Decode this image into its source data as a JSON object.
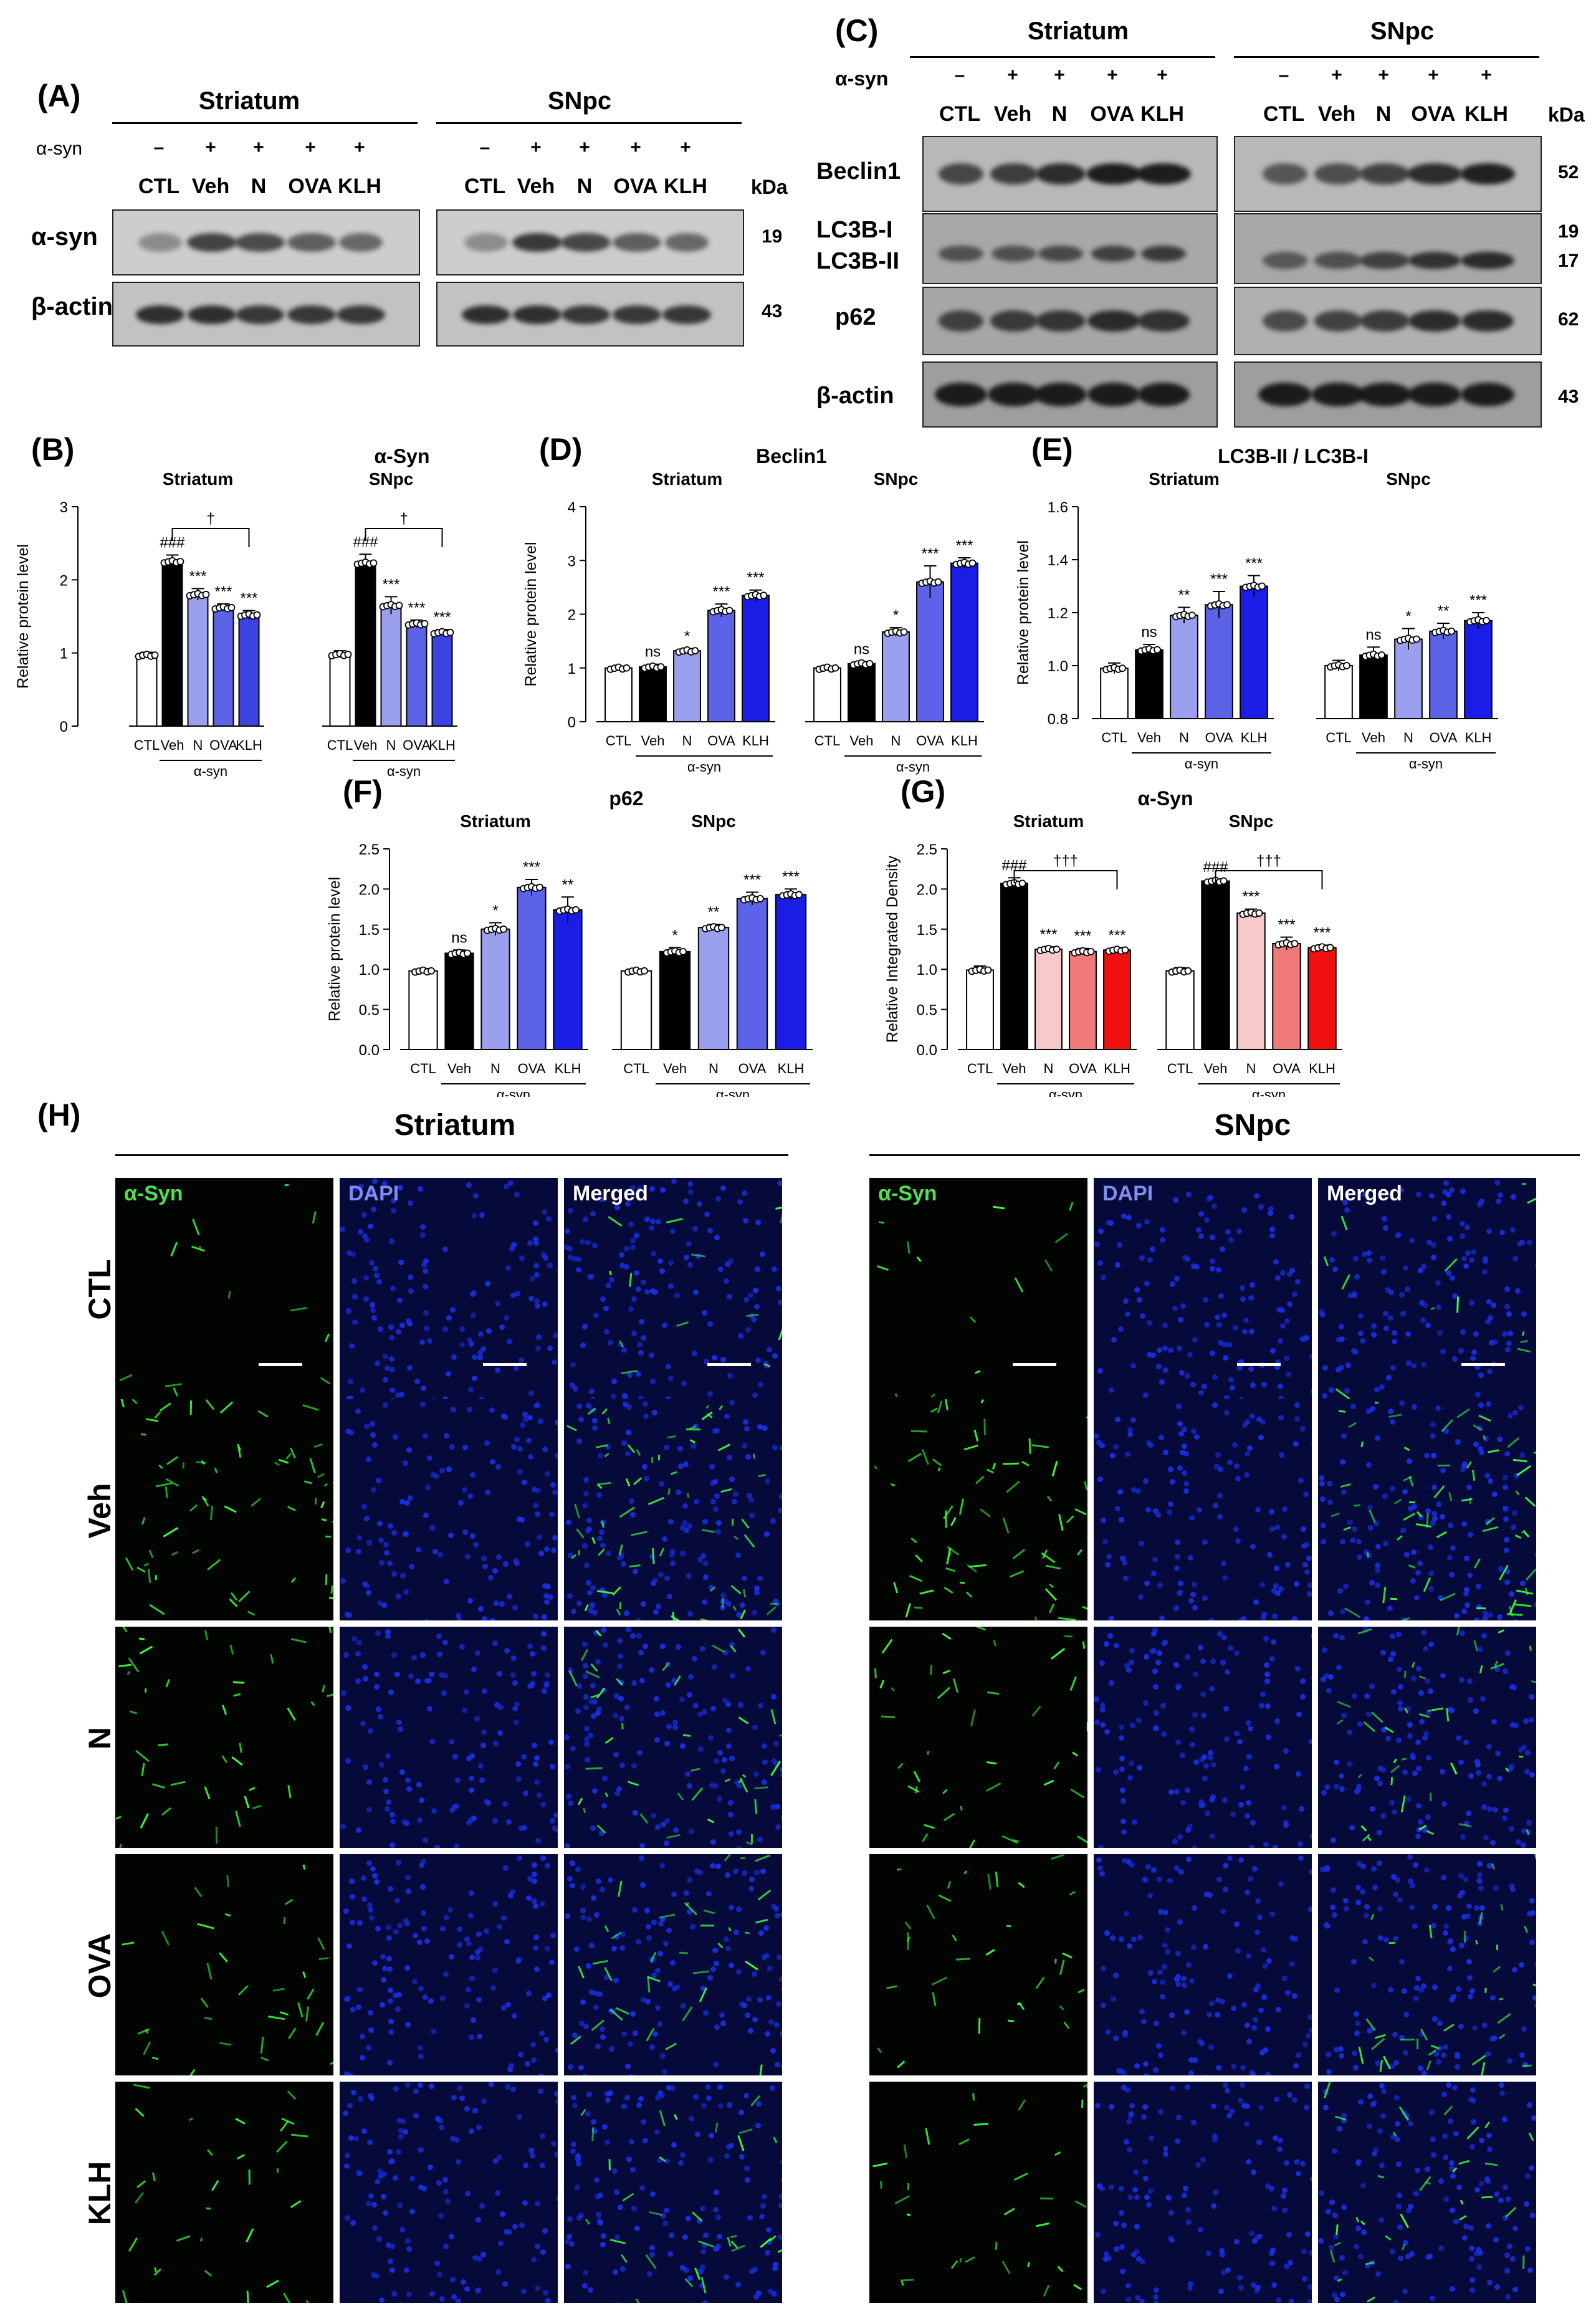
{
  "panels": {
    "A": {
      "label": "(A)",
      "regions": [
        "Striatum",
        "SNpc"
      ],
      "asyn_label": "α-syn",
      "asyn_signs": [
        "–",
        "+",
        "+",
        "+",
        "+"
      ],
      "groups": [
        "CTL",
        "Veh",
        "N",
        "OVA",
        "KLH"
      ],
      "kda_label": "kDa",
      "rows": [
        {
          "name": "α-syn",
          "kda": "19"
        },
        {
          "name": "β-actin",
          "kda": "43"
        }
      ]
    },
    "C": {
      "label": "(C)",
      "regions": [
        "Striatum",
        "SNpc"
      ],
      "asyn_label": "α-syn",
      "asyn_signs": [
        "–",
        "+",
        "+",
        "+",
        "+"
      ],
      "groups": [
        "CTL",
        "Veh",
        "N",
        "OVA",
        "KLH"
      ],
      "kda_label": "kDa",
      "rows": [
        {
          "name": "Beclin1",
          "kda": "52"
        },
        {
          "name": "LC3B-I",
          "kda": "19"
        },
        {
          "name": "LC3B-II",
          "kda": "17"
        },
        {
          "name": "p62",
          "kda": "62"
        },
        {
          "name": "β-actin",
          "kda": "43"
        }
      ]
    },
    "H": {
      "label": "(H)",
      "regions": [
        "Striatum",
        "SNpc"
      ],
      "channels": [
        "α-Syn",
        "DAPI",
        "Merged"
      ],
      "rows": [
        "CTL",
        "Veh",
        "N",
        "OVA",
        "KLH"
      ]
    }
  },
  "chart_data": [
    {
      "panel_label": "(B)",
      "type": "bar",
      "title": "α-Syn",
      "ylabel": "Relative protein level",
      "ylim": [
        0,
        3
      ],
      "yticks": [
        0,
        1,
        2,
        3
      ],
      "groups": [
        "Striatum",
        "SNpc"
      ],
      "categories": [
        "CTL",
        "Veh",
        "N",
        "OVA",
        "KLH"
      ],
      "group_sublabel": "α-syn",
      "colors": [
        "#ffffff",
        "#000000",
        "#9aa0ee",
        "#5c63e6",
        "#3b43e0"
      ],
      "series": [
        {
          "name": "Striatum",
          "values": [
            0.97,
            2.25,
            1.8,
            1.62,
            1.52
          ],
          "errors": [
            0.04,
            0.09,
            0.08,
            0.05,
            0.06
          ],
          "annotations": [
            "",
            "###",
            "***",
            "***",
            "***"
          ]
        },
        {
          "name": "SNpc",
          "values": [
            0.98,
            2.23,
            1.65,
            1.4,
            1.28
          ],
          "errors": [
            0.05,
            0.12,
            0.12,
            0.05,
            0.04
          ],
          "annotations": [
            "",
            "###",
            "***",
            "***",
            "***"
          ]
        }
      ],
      "brackets": [
        "†",
        "†"
      ]
    },
    {
      "panel_label": "(D)",
      "type": "bar",
      "title": "Beclin1",
      "ylabel": "Relative protein level",
      "ylim": [
        0,
        4
      ],
      "yticks": [
        0,
        1,
        2,
        3,
        4
      ],
      "groups": [
        "Striatum",
        "SNpc"
      ],
      "categories": [
        "CTL",
        "Veh",
        "N",
        "OVA",
        "KLH"
      ],
      "group_sublabel": "α-syn",
      "colors": [
        "#ffffff",
        "#000000",
        "#9aa0ee",
        "#5c63e6",
        "#1a1de6"
      ],
      "series": [
        {
          "name": "Striatum",
          "values": [
            1.0,
            1.02,
            1.32,
            2.07,
            2.35
          ],
          "errors": [
            0.03,
            0.05,
            0.04,
            0.12,
            0.1
          ],
          "annotations": [
            "",
            "ns",
            "*",
            "***",
            "***"
          ]
        },
        {
          "name": "SNpc",
          "values": [
            1.0,
            1.08,
            1.67,
            2.6,
            2.95
          ],
          "errors": [
            0.03,
            0.04,
            0.08,
            0.3,
            0.1
          ],
          "annotations": [
            "",
            "ns",
            "*",
            "***",
            "***"
          ]
        }
      ]
    },
    {
      "panel_label": "(E)",
      "type": "bar",
      "title": "LC3B-II / LC3B-I",
      "ylabel": "Relative protein level",
      "ylim": [
        0.8,
        1.6
      ],
      "yticks": [
        0.8,
        1.0,
        1.2,
        1.4,
        1.6
      ],
      "groups": [
        "Striatum",
        "SNpc"
      ],
      "categories": [
        "CTL",
        "Veh",
        "N",
        "OVA",
        "KLH"
      ],
      "group_sublabel": "α-syn",
      "colors": [
        "#ffffff",
        "#000000",
        "#9aa0ee",
        "#5c63e6",
        "#1a1de6"
      ],
      "series": [
        {
          "name": "Striatum",
          "values": [
            0.99,
            1.06,
            1.19,
            1.23,
            1.3
          ],
          "errors": [
            0.02,
            0.02,
            0.03,
            0.05,
            0.04
          ],
          "annotations": [
            "",
            "ns",
            "**",
            "***",
            "***"
          ]
        },
        {
          "name": "SNpc",
          "values": [
            1.0,
            1.04,
            1.1,
            1.13,
            1.17
          ],
          "errors": [
            0.02,
            0.03,
            0.04,
            0.03,
            0.03
          ],
          "annotations": [
            "",
            "ns",
            "*",
            "**",
            "***"
          ]
        }
      ]
    },
    {
      "panel_label": "(F)",
      "type": "bar",
      "title": "p62",
      "ylabel": "Relative protein level",
      "ylim": [
        0,
        2.5
      ],
      "yticks": [
        0,
        0.5,
        1.0,
        1.5,
        2.0,
        2.5
      ],
      "groups": [
        "Striatum",
        "SNpc"
      ],
      "categories": [
        "CTL",
        "Veh",
        "N",
        "OVA",
        "KLH"
      ],
      "group_sublabel": "α-syn",
      "colors": [
        "#ffffff",
        "#000000",
        "#9aa0ee",
        "#5c63e6",
        "#1a1de6"
      ],
      "series": [
        {
          "name": "Striatum",
          "values": [
            0.98,
            1.2,
            1.5,
            2.02,
            1.74
          ],
          "errors": [
            0.03,
            0.04,
            0.08,
            0.1,
            0.16
          ],
          "annotations": [
            "",
            "ns",
            "*",
            "***",
            "**"
          ]
        },
        {
          "name": "SNpc",
          "values": [
            0.98,
            1.22,
            1.52,
            1.88,
            1.93
          ],
          "errors": [
            0.02,
            0.05,
            0.04,
            0.08,
            0.07
          ],
          "annotations": [
            "",
            "*",
            "**",
            "***",
            "***"
          ]
        }
      ]
    },
    {
      "panel_label": "(G)",
      "type": "bar",
      "title": "α-Syn",
      "ylabel": "Relative Integrated Density",
      "ylim": [
        0,
        2.5
      ],
      "yticks": [
        0,
        0.5,
        1.0,
        1.5,
        2.0,
        2.5
      ],
      "groups": [
        "Striatum",
        "SNpc"
      ],
      "categories": [
        "CTL",
        "Veh",
        "N",
        "OVA",
        "KLH"
      ],
      "group_sublabel": "α-syn",
      "colors": [
        "#ffffff",
        "#000000",
        "#f8c9c9",
        "#f07a7a",
        "#f01010"
      ],
      "series": [
        {
          "name": "Striatum",
          "values": [
            0.99,
            2.07,
            1.25,
            1.22,
            1.24
          ],
          "errors": [
            0.05,
            0.07,
            0.03,
            0.04,
            0.03
          ],
          "annotations": [
            "",
            "###",
            "***",
            "***",
            "***"
          ]
        },
        {
          "name": "SNpc",
          "values": [
            0.98,
            2.1,
            1.7,
            1.32,
            1.27
          ],
          "errors": [
            0.04,
            0.02,
            0.05,
            0.08,
            0.03
          ],
          "annotations": [
            "",
            "###",
            "***",
            "***",
            "***"
          ]
        }
      ],
      "brackets": [
        "†††",
        "†††"
      ]
    }
  ]
}
